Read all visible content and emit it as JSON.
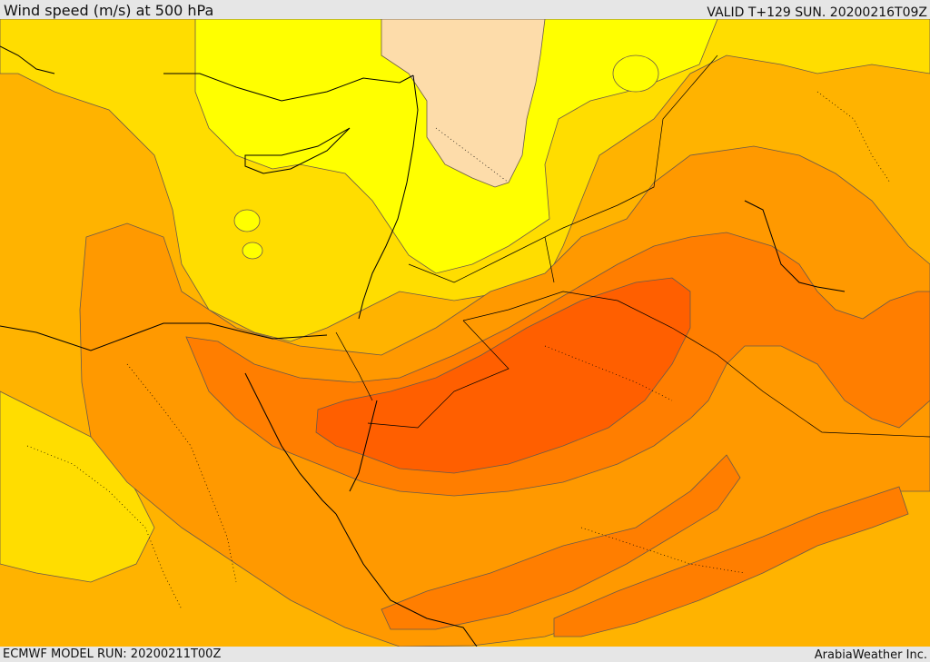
{
  "header": {
    "title": "Wind speed (m/s) at 500 hPa",
    "valid": "VALID T+129 SUN. 20200216T09Z"
  },
  "footer": {
    "model_run": "ECMWF MODEL RUN: 20200211T00Z",
    "credit": "ArabiaWeather Inc."
  },
  "map": {
    "field": "wind-speed-500hPa",
    "colors": {
      "band_lightest": "#fddcaa",
      "band_yellow": "#ffff00",
      "band_gold": "#ffdd00",
      "band_amber": "#ffb300",
      "band_orange": "#ff9900",
      "band_dark_orange": "#ff7e00",
      "band_red_orange": "#ff5f00",
      "contour_line": "#6b5a4a",
      "coastline": "#000000"
    }
  }
}
